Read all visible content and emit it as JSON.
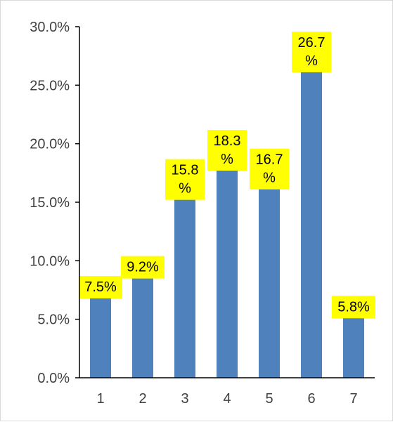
{
  "chart_data": {
    "type": "bar",
    "title": "",
    "xlabel": "",
    "ylabel": "",
    "categories": [
      "1",
      "2",
      "3",
      "4",
      "5",
      "6",
      "7"
    ],
    "values": [
      7.5,
      9.2,
      15.8,
      18.3,
      16.7,
      26.7,
      5.8
    ],
    "data_labels": [
      "7.5%",
      "9.2%",
      "15.8%",
      "18.3%",
      "16.7%",
      "26.7%",
      "5.8%"
    ],
    "ylim": [
      0,
      30
    ],
    "yticks": [
      "0.0%",
      "5.0%",
      "10.0%",
      "15.0%",
      "20.0%",
      "25.0%",
      "30.0%"
    ],
    "grid": false,
    "legend": "none",
    "colors": {
      "bar": "#4f81bd",
      "label_background": "#ffff00",
      "axis": "#000000"
    }
  }
}
